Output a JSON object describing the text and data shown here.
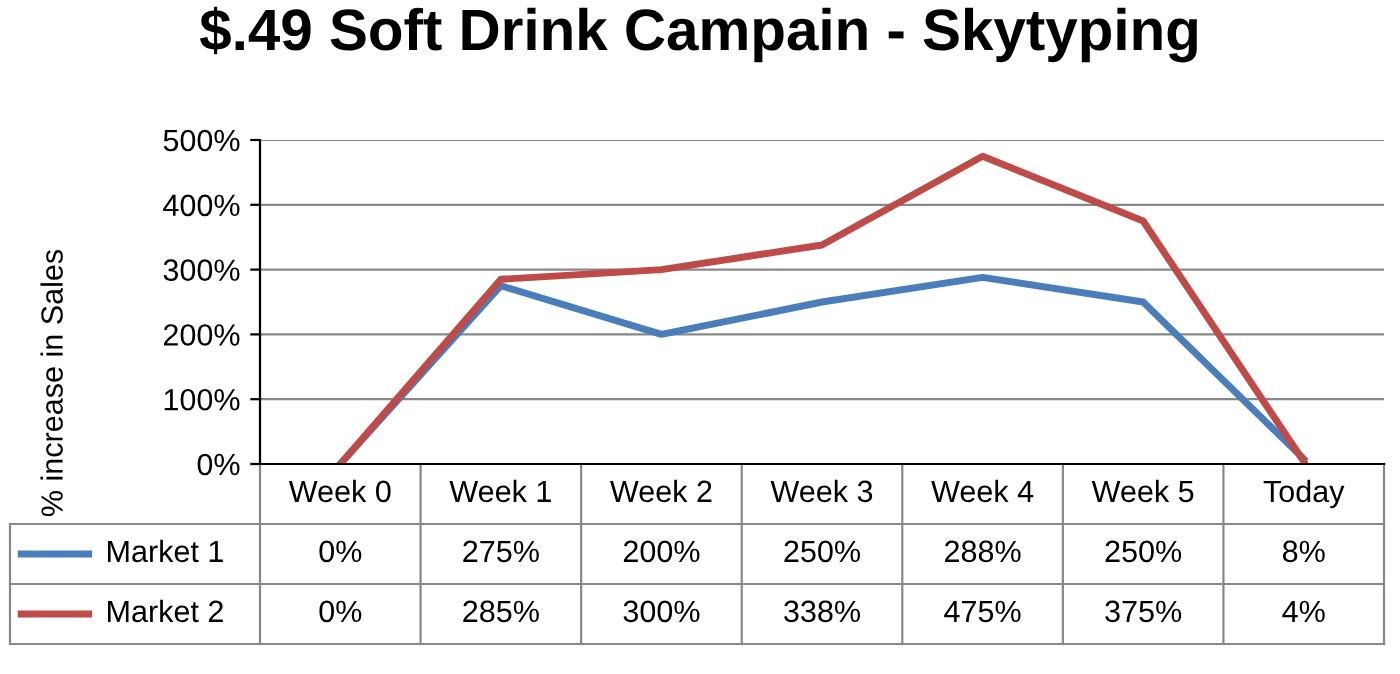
{
  "chart_data": {
    "type": "line",
    "title": "$.49 Soft Drink Campain - Skytyping",
    "ylabel": "% increase in Sales",
    "categories": [
      "Week 0",
      "Week 1",
      "Week 2",
      "Week 3",
      "Week 4",
      "Week 5",
      "Today"
    ],
    "series": [
      {
        "name": "Market 1",
        "color": "#4a7ebb",
        "values": [
          0,
          275,
          200,
          250,
          288,
          250,
          8
        ],
        "value_labels": [
          "0%",
          "275%",
          "200%",
          "250%",
          "288%",
          "250%",
          "8%"
        ]
      },
      {
        "name": "Market 2",
        "color": "#be4b48",
        "values": [
          0,
          285,
          300,
          338,
          475,
          375,
          4
        ],
        "value_labels": [
          "0%",
          "285%",
          "300%",
          "338%",
          "475%",
          "375%",
          "4%"
        ]
      }
    ],
    "ylim": [
      0,
      500
    ],
    "yticks": [
      {
        "value": 0,
        "label": "0%"
      },
      {
        "value": 100,
        "label": "100%"
      },
      {
        "value": 200,
        "label": "200%"
      },
      {
        "value": 300,
        "label": "300%"
      },
      {
        "value": 400,
        "label": "400%"
      },
      {
        "value": 500,
        "label": "500%"
      }
    ],
    "grid": "y",
    "legend": "bottom",
    "marker": "none",
    "line_style": "solid"
  }
}
